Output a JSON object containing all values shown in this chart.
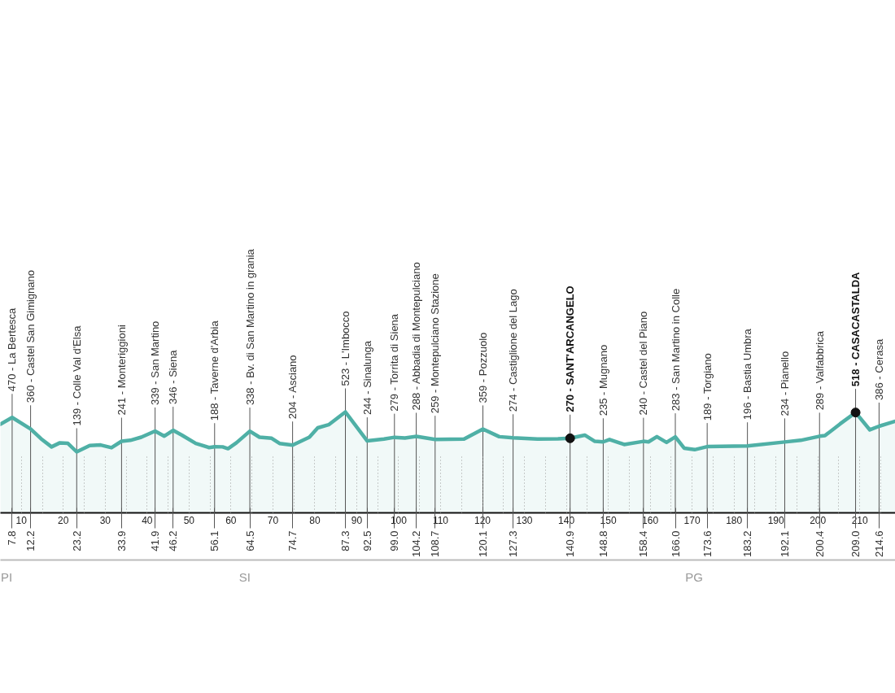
{
  "chart_data": {
    "type": "area",
    "xlim": [
      5,
      218.5
    ],
    "xticks": [
      10,
      20,
      30,
      40,
      50,
      60,
      70,
      80,
      90,
      100,
      110,
      120,
      130,
      140,
      150,
      160,
      170,
      180,
      190,
      200,
      210
    ],
    "x2lim": [
      5,
      218.5
    ],
    "x2ticks": [
      7.8,
      12.2,
      23.2,
      33.9,
      41.9,
      46.2,
      56.1,
      64.5,
      74.7,
      87.3,
      92.5,
      {
        "value": 99,
        "label": "99.0"
      },
      104.2,
      108.7,
      120.1,
      127.3,
      140.9,
      148.8,
      158.4,
      {
        "value": 166,
        "label": "166.0"
      },
      173.6,
      183.2,
      192.1,
      200.4,
      {
        "value": 209,
        "label": "209.0"
      },
      214.6
    ],
    "annotations": [
      "PI",
      "SI",
      "PG"
    ],
    "tick_labels": "x",
    "grid": "x",
    "series": [
      {
        "color": "#4fb0a6",
        "x": [
          5.0,
          7.8,
          12.2,
          14.7,
          17.2,
          19.2,
          21.1,
          23.2,
          26.3,
          28.9,
          31.5,
          33.9,
          36.0,
          38.6,
          41.9,
          44.1,
          46.2,
          48.3,
          51.6,
          54.8,
          56.1,
          58.0,
          59.3,
          61.3,
          64.5,
          66.8,
          69.7,
          71.6,
          74.7,
          78.7,
          80.7,
          83.3,
          87.3,
          92.5,
          96.5,
          99.0,
          101.5,
          104.2,
          108.7,
          115.6,
          120.1,
          124.0,
          127.3,
          133.1,
          138.0,
          140.9,
          144.4,
          146.8,
          148.8,
          150.3,
          153.8,
          158.4,
          159.6,
          161.6,
          163.9,
          166.0,
          168.1,
          170.6,
          173.6,
          183.2,
          192.1,
          195.9,
          200.4,
          201.7,
          205.3,
          209.0,
          212.4,
          214.6,
          218.5
        ],
        "values": [
          405,
          470,
          360,
          265,
          187,
          226,
          221,
          139,
          200,
          205,
          179,
          241,
          250,
          280,
          339,
          290,
          346,
          300,
          220,
          180,
          188,
          187,
          170,
          226,
          338,
          280,
          270,
          220,
          204,
          280,
          370,
          400,
          523,
          244,
          262,
          279,
          272,
          288,
          259,
          262,
          359,
          285,
          274,
          262,
          265,
          270,
          300,
          240,
          235,
          258,
          210,
          240,
          235,
          285,
          230,
          283,
          175,
          160,
          189,
          196,
          234,
          250,
          289,
          295,
          408,
          518,
          351,
          386,
          434
        ],
        "value_labels": [
          null,
          "470 - La Bertesca",
          "360 - Castel San Gimignano",
          null,
          null,
          null,
          null,
          "139 - Colle Val d'Elsa",
          null,
          null,
          null,
          "241 - Monteriggioni",
          null,
          null,
          "339 - San Martino",
          null,
          "346 - Siena",
          null,
          null,
          null,
          "188 - Taverne d'Arbia",
          null,
          null,
          null,
          "338 - Bv. di San Martino in grania",
          null,
          null,
          null,
          "204 - Asciano",
          null,
          null,
          null,
          "523 - L'Imbocco",
          "244 - Sinalunga",
          null,
          "279 - Torrita di Siena",
          null,
          "288 - Abbadia di Montepulciano",
          "259 - Montepulciano Stazione",
          null,
          "359 - Pozzuolo",
          null,
          "274 - Castiglione del Lago",
          null,
          null,
          null,
          null,
          null,
          "235 - Mugnano",
          null,
          null,
          "240 - Castel del Piano",
          null,
          null,
          null,
          "283 - San Martino in Colle",
          null,
          null,
          "189 - Torgiano",
          "196 - Bastia Umbra",
          "234 - Pianello",
          null,
          "289 - Valfabbrica",
          null,
          null,
          null,
          null,
          "386 - Cerasa",
          null
        ]
      },
      {
        "type": "scatter",
        "color": "#111111",
        "marker": "circle",
        "x": [
          140.9,
          209.0
        ],
        "values": [
          270,
          518
        ],
        "value_labels": [
          "270 - SANT'ARCANGELO",
          "518 - CASACASTALDA"
        ]
      }
    ]
  }
}
